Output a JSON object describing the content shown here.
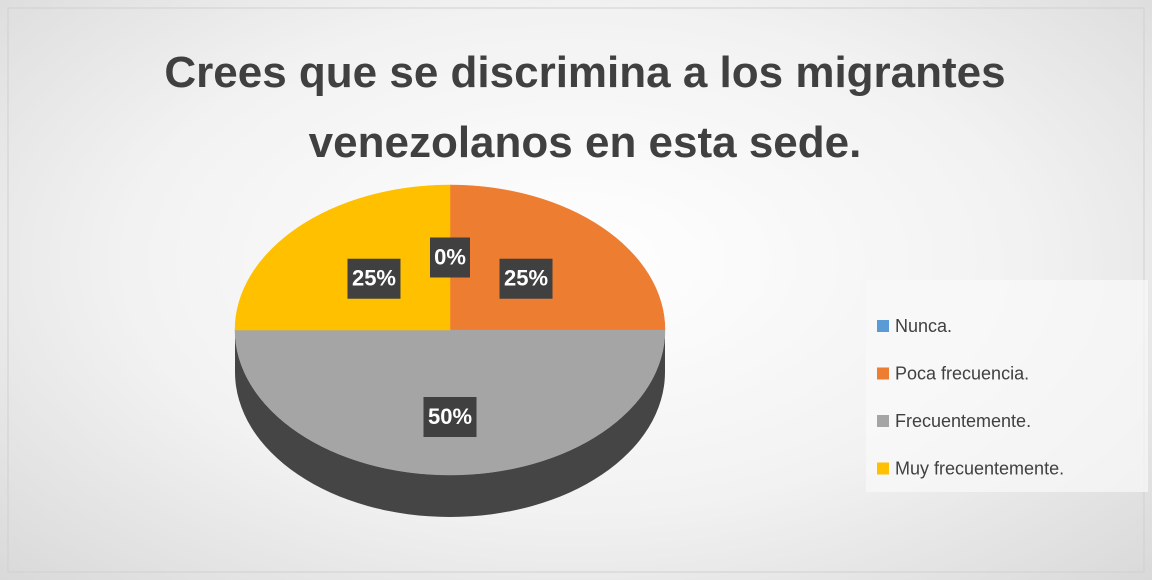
{
  "chart_data": {
    "type": "pie",
    "title": "Crees que se discrimina a los migrantes venezolanos en esta sede.",
    "categories": [
      "Nunca.",
      "Poca frecuencia.",
      "Frecuentemente.",
      "Muy frecuentemente."
    ],
    "values": [
      0,
      25,
      50,
      25
    ],
    "value_labels": [
      "0%",
      "25%",
      "50%",
      "25%"
    ],
    "colors": [
      "#5b9bd5",
      "#ed7d31",
      "#a5a5a5",
      "#ffc000"
    ],
    "legend": "right"
  }
}
